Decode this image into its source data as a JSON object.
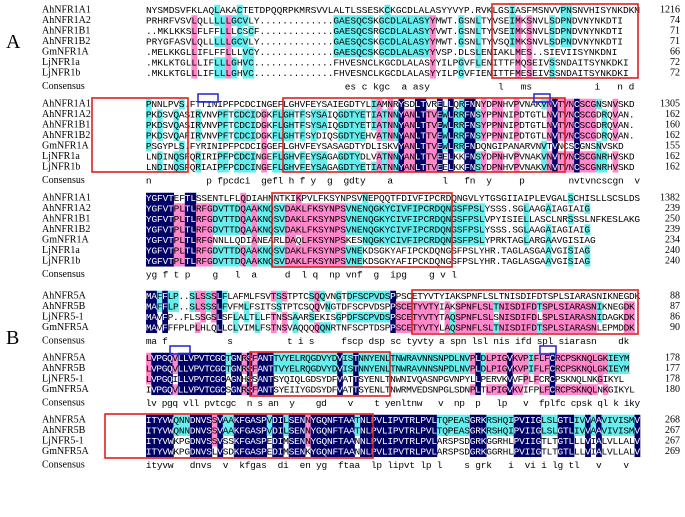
{
  "panels": [
    {
      "label": "A",
      "blocks": [
        {
          "rows": [
            {
              "name": "AhNFR1A1",
              "seq": "NYSMDSVFKLAQLAKACTETDPQQRPKMRSVVLALTLSSESKCKGCDLALASYYVYP.RVKLGSIASFMSNVVPNSNVHISYNKDKM",
              "end": 1216
            },
            {
              "name": "AhNFR1A2",
              "seq": "PRHRFVSVLQLLLLLGCVLY.............GAESQCSKGCDLALASYYMWT.GSNLTYVSEIMKSNVLSDPNDVNYNKDTI",
              "end": 74
            },
            {
              "name": "AhNFR1B1",
              "seq": "..MKLKKSLFLFFLLLCSCF.............GAESQCSRGCDLALASYYVWT.GSNLTYVSEIMKSNVLSDPNDVNYNKDTI",
              "end": 71
            },
            {
              "name": "AhNFR1B2",
              "seq": "PRYGFASVLQLLLLLGCVLY.............GAESQCSKGCDLALASYYMWT.GSNLTYVSQIMKSNVLSDPNDVNYNKDTI",
              "end": 71
            },
            {
              "name": "GmNFR1A",
              "seq": ".MELKKGLLIFLFFLLLVCY.............GAESQCSKGCDLALASYYVSP.DLSLENIAKLMES..SIEVIISYNKDNI",
              "end": 66
            },
            {
              "name": "LjNFR1a",
              "seq": ".MKLKTGLLLIFLLLGHVC..............FHVESNCLKGCDLALASYYILPGVFLENITTFMQSEIVSSNDAITSYNKDKI",
              "end": 72
            },
            {
              "name": "LjNFR1b",
              "seq": ".MKLKTGLLLIFLLLGHVC..............FHVESNCLKGCDLALASYYILPGVFIENITTFMESEIVSSNDAITSYNKDKI",
              "end": 72
            }
          ],
          "consensus_label": "Consensus",
          "consensus": "                                   es c kgc  a asy            l   ms           i   n d"
        },
        {
          "rows": [
            {
              "name": "AhNFR1A1",
              "seq": "PNNLPVS.FTTINIPFPCDCINGEFLGHVFEYSAIEGDTYLIAMNRYSDLTVRELLQRFNNYDPNHVPVNAKVNVTVNCSCGNSNVSKD",
              "end": 1305
            },
            {
              "name": "AhNFR1A2",
              "seq": "PKDSVQASIRVNVPFTCDCIDGKFLGHTFSYSAIQGDTYETIATNNYANLTTVEWLRRFNSYPPNNIPDTGTLNVTVNCSCGDRQVAN.",
              "end": 162
            },
            {
              "name": "AhNFR1B1",
              "seq": "PKDSVQASIRVNVPFTCDCIDGKFLGHTFSYSAIQGDTYETIATNNYANLTTVEWLRRFNSYPPNNIPDTGTLNVTVNCSCGDRQVAN.",
              "end": 160
            },
            {
              "name": "AhNFR1B2",
              "seq": "PKDSVQAFIRVNVPFTCDCIDGKFLGHTFSYDIQSGDTYEHVATNNYANLTTVEWLRRFNSYPPNNIPDTGTLNVTVNCSCGDRQVAN.",
              "end": 162
            },
            {
              "name": "GmNFR1A",
              "seq": "PSGYPLS.FYRINIPFPCDCIGGEFLGHVFEYSASAGDTYDLISKVYANLTTVEWLRRFNDQNGIPANARVNVTVNCSCGNSNVSKD",
              "end": 155
            },
            {
              "name": "LjNFR1a",
              "seq": "LNDINQSFQRIRIPFPCDCINGEFLGHVFEYSAGAGDTYDLVATNNYANLTTVEELKKFNSYDPNHVPVNAKVNVTVNCSCGNRHVSKD",
              "end": 162
            },
            {
              "name": "LjNFR1b",
              "seq": "LNDINQSFQRIAIPFPCDCINGEFLGHVFEYSAGAGDTYETIATNNYANLTTVEELKKFNSYDPNHVPVNAKVNVTVNCSCGNRHVSKD",
              "end": 162
            }
          ],
          "consensus_label": "Consensus",
          "consensus": "n          p fpcdci  gefl h f y  g  gdty    a         l   fn  y     p        nvtvncscgn  v"
        },
        {
          "rows": [
            {
              "name": "AhNFR1A1",
              "seq": "YGFVTEFTLSSENTLFLQDIAHNNTKIKPVLFKSYNPSVNEPQQTFDIVFIPCRDQNGVLYTGSGIIAIPLEVGALSCHISLLSCSLDS",
              "end": 1382
            },
            {
              "name": "AhNFR1A2",
              "seq": "YGFVTPLTLRFGDVTTDQAAKNQSVDAKLFKSYNPSVNENQGKYCIVFIPCRDQNGSFPSLYSSS.SGLAAGAIAGIAIG",
              "end": 239
            },
            {
              "name": "AhNFR1B1",
              "seq": "YGFVTPLTLRFGDVTTDQAAKNQSVDAKLFKSYNPSVNENQGKYCIVFIPCRDQNGSFPSLVPYISIELLASCLNRSSSLNFKESLAKG",
              "end": 250
            },
            {
              "name": "AhNFR1B2",
              "seq": "YGFVTPLTLRFGDVTTDQAAKNQSVDAKLFKSYNPSVNENQGKYCIVFIPCRDQNGSFPSLYSSS.SGLAAGAIAGIAIG",
              "end": 239
            },
            {
              "name": "GmNFR1A",
              "seq": "YGFVTPLTLRFGNNLLQDIANEARLDAQLFKSYNPSKESNQGKYCIVFIPCRDQNGSFPSLYPRKTAGLARGAAVGISIAG",
              "end": 234
            },
            {
              "name": "LjNFR1a",
              "seq": "YGFVTPLTLRFGDVTTDQAAKNQSVDAKLFKSYNPSVNEKDSGKYAFIPCKDQNGSFPSLYHR.TAGLASGAAVGISIAG",
              "end": 240
            },
            {
              "name": "LjNFR1b",
              "seq": "YGFVTPLTLRFGDVTTDQAAKNQSVDAKLFKSYNPSVNEKDSGKYAFIPCKDQNGSFPSLYHR.TAGLASGAAVGISIAG",
              "end": 240
            }
          ],
          "consensus_label": "Consensus",
          "consensus": "yg f t p    g   l  a     d  l q  np vnf  g  ipg    g v l"
        }
      ]
    },
    {
      "label": "B",
      "blocks": [
        {
          "rows": [
            {
              "name": "AhNFR5A",
              "seq": "MAFFLP..SLSSSLFLAFMLFSVTSSTPTCSQQVNGTDFSCPVDSPPSCETYVTYIAKSPNFLSLTNISDIFDTSPLSIARASNIKNEGDK",
              "end": 88
            },
            {
              "name": "AhNFR5B",
              "seq": "MAFFLP..SLSSSLFVFMLFSITSSTPTCSQQVNGTDFSCPVDSPPSCETYVTYIAKSPNFLSLTNISDIFDTSPLSIARASNIKNEGDK",
              "end": 87
            },
            {
              "name": "LjNFR5-1",
              "seq": "MAVFP..FLSSGSLSFLALTLLFTNSSAARSEKISGPDFSCPVDSPSCETYVTYTAQSPNFLSLSNISDIFDLSPLSIARASNIDAGKDK",
              "end": 86
            },
            {
              "name": "GmNFR5A",
              "seq": "MAVFFFPLPLHLQLLCLVIMLFSTNSVAQQQQQNRTNFSCPTDSPPSCETYVTYLAQSPNFLSLTNISDIFDTSPLSIARASNLEPMDDK",
              "end": 90
            }
          ],
          "consensus_label": "Consensus",
          "consensus": "ma f           s          t i s     fscp dsp sc tyvty a spn lsl nis ifd spl siarasn    dk"
        },
        {
          "rows": [
            {
              "name": "AhNFR5A",
              "seq": "LVPGQVLLVPVTCGCTGNRSFANTTVYELRQGDVYDVISTNNYENLTNWRAVNNSNPDLNVPLDLPIGVKVPIFLFCRCPSKNQLGKIEYM",
              "end": 178
            },
            {
              "name": "AhNFR5B",
              "seq": "LVPGQVLLVPVTCGCTGNRSFANTTVYELRQGDVYDVISTNNYENLTNWRAVNNSNPDLNVPLDLPIGVKVPIFLFCRCPSKNQLGKIEYM",
              "end": 177
            },
            {
              "name": "LjNFR5-1",
              "seq": "LVPGQILLVPVTCGCAGNHSSANTSYQIQLGDSYDFVATTSYENLTNWNIVQASNPGVNPYLLPERVKVVFPLFCRCPSKNQLNKGIKYL",
              "end": 178
            },
            {
              "name": "GmNFR5A",
              "seq": "IVPGQVLLVPVTCGCSGNRSFANTSYEIIYGDSYDFVATTSYENLTNWRMVEDSNPGLSDNPLTLPIGVKVIFPLFCRCPSKNQLNKGIKYL",
              "end": 180
            }
          ],
          "consensus_label": "Consensus",
          "consensus": "lv pgq vll pvtcgc  n s an  y    gd    v    t yenltnw   v  np  p   lp   v  fplfc cpsk ql k iky"
        },
        {
          "rows": [
            {
              "name": "AhNFR5A",
              "seq": "ITYVWQNNDNVSSVAAKFGASPVDILSENNYGQNFTAATNLPVLIPVTRLPVLTQPEASGRKRSHQIPVIIGLSLGTLIVVAAVIVISMV",
              "end": 268
            },
            {
              "name": "AhNFR5B",
              "seq": "ITYVWQNNDNVSSVAAKFGASPVDILSENNYGQNFTAATNLPVLIPVTRLPVLTQPEASGRKRSHQIPVIIGLSLGTLIVVAAVIVISMV",
              "end": 267
            },
            {
              "name": "LjNFR5-1",
              "seq": "ITYVWKPGDNVSSVSSKFGASPEDIMSENNYGQNFTAANNLPVLIPVTRLPVLARSPSDGRKGGRHLPVIIGTLTGTLLLVIALVLLALV",
              "end": 267
            },
            {
              "name": "GmNFR5A",
              "seq": "ITYVWKPGDNVSLVSDKFGASPEDIMSENKYGQNFTAANNLPVLIPVTRLPVLARSPSDGRKGGRHLPVIIGTLTGTLLLVIALVLLALV",
              "end": 269
            }
          ],
          "consensus_label": "Consensus",
          "consensus": "ityvw   dnvs  v  kfgas  di  en yg  ftaa  lp lipvt lp l    s grk   i  vi i lg tl   v    v"
        }
      ]
    }
  ]
}
